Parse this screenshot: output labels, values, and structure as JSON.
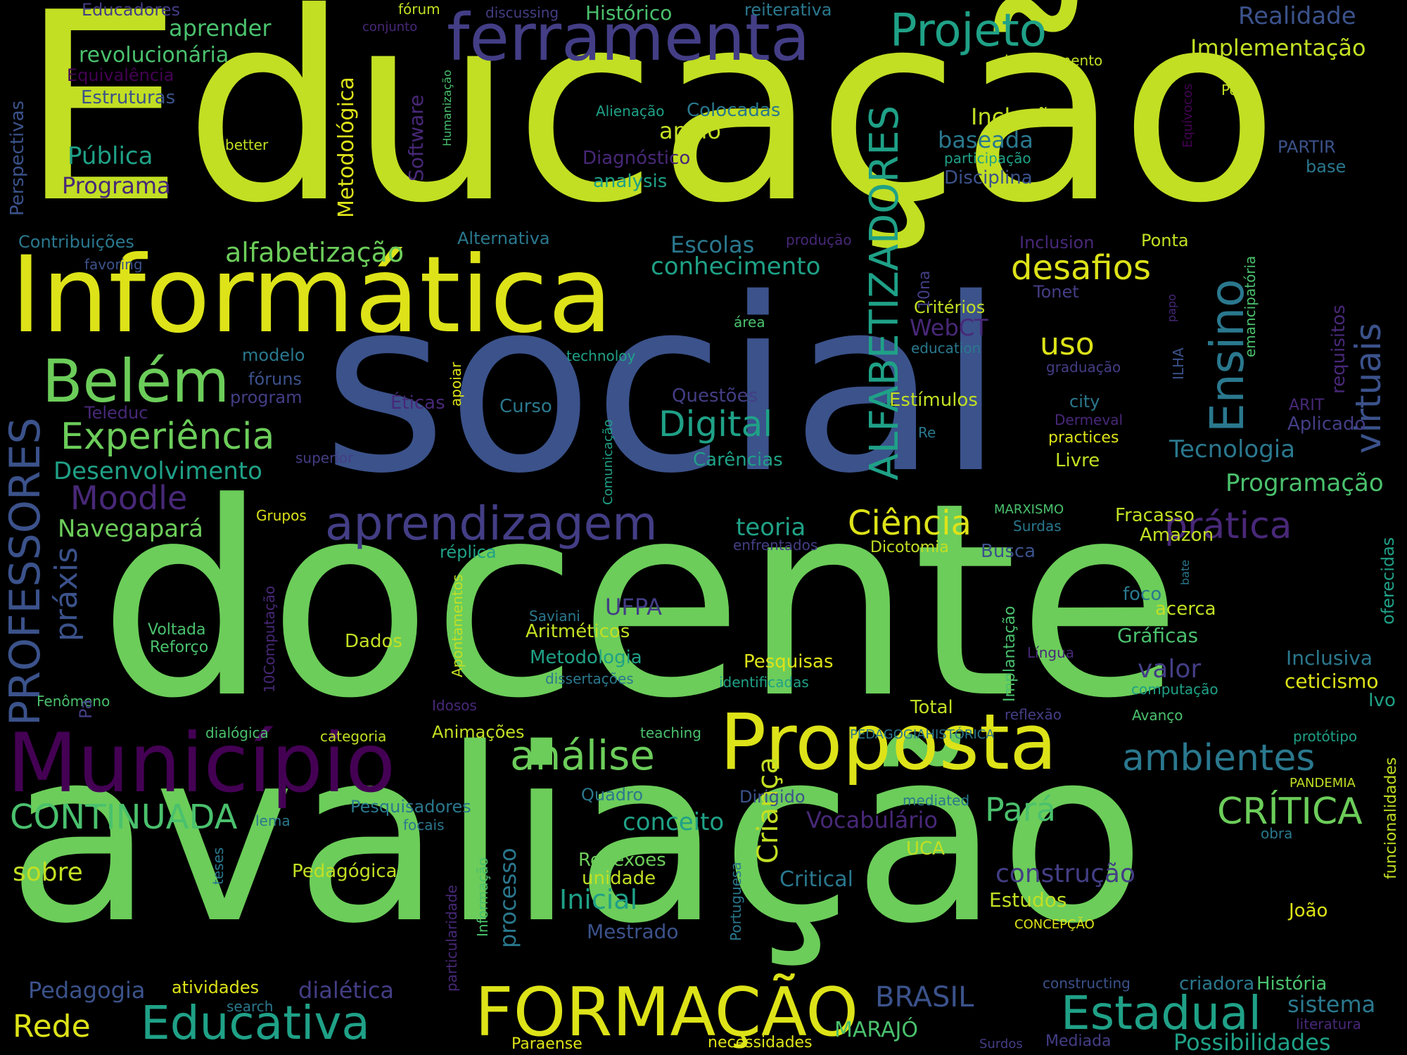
{
  "palette": {
    "background": "#000000",
    "lime": "#c2df23",
    "yellow": "#dde318",
    "green": "#6ccd5a",
    "green2": "#4ac16d",
    "teal": "#2a788e",
    "teal2": "#1fa187",
    "blue": "#3b528b",
    "indigo": "#433e85",
    "purple": "#440154",
    "violet": "#482878"
  },
  "words": {
    "educacao": "Educação",
    "social": "social",
    "docente": "docente",
    "avaliacao": "avaliação",
    "informatica": "Informática",
    "ferramenta": "ferramenta",
    "projeto": "Projeto",
    "municipio": "Município",
    "proposta": "Proposta",
    "formacao": "FORMAÇÃO",
    "educativa": "Educativa",
    "alfabetizadores": "ALFABETIZADORES",
    "ensino": "Ensino",
    "virtuais": "virtuais",
    "professores": "PROFESSORES",
    "aprendizagem": "aprendizagem",
    "belem": "Belém",
    "experiencia": "Experiência",
    "analise": "análise",
    "estadual": "Estadual",
    "ambientes": "ambientes",
    "critica": "CRÍTICA",
    "continuada": "CONTINUADA",
    "desafios": "desafios",
    "digital": "Digital",
    "alfabetizacao": "alfabetização",
    "conhecimento": "conhecimento",
    "moodle": "Moodle",
    "ciencia": "Ciência",
    "pratica": "prática",
    "praxis": "práxis",
    "rede": "Rede",
    "crianca": "Criança",
    "uso": "uso",
    "inclusao": "Inclusão",
    "implementacao": "Implementação",
    "realidade": "Realidade",
    "historico": "Histórico",
    "aprender": "aprender",
    "revolucionaria": "revolucionária",
    "equivalencia": "Equivalência",
    "estruturas": "Estruturas",
    "educadores": "Educadores",
    "forum": "fórum",
    "conjunto": "conjunto",
    "discussing": "discussing",
    "reiterativa": "reiterativa",
    "levantamento": "levantamento",
    "metodologica": "Metodológica",
    "software": "Software",
    "humanizacao": "Humanização",
    "publica": "Pública",
    "programa": "Programa",
    "better": "better",
    "alienacao": "Alienação",
    "colocadas": "Colocadas",
    "apoio": "apoio",
    "baseada": "baseada",
    "diagnostico": "Diagnóstico",
    "analysis": "analysis",
    "participacao": "participação",
    "disciplina": "Disciplina",
    "partir": "PARTIR",
    "base": "base",
    "pos": "Pós",
    "equivocos": "Equívocos",
    "perspectivas": "Perspectivas",
    "contribuicoes": "Contribuições",
    "favoring": "favoring",
    "alternativa": "Alternativa",
    "escolas": "Escolas",
    "producao": "produção",
    "inclusion": "Inclusion",
    "ponta": "Ponta",
    "tonet": "Tonet",
    "criterios": "Critérios",
    "webct": "WebCT",
    "education": "education",
    "area": "área",
    "technoloy": "technoloy",
    "modelo": "modelo",
    "foruns": "fóruns",
    "program": "program",
    "eticas": "Éticas",
    "questoes": "Questões",
    "curso": "Curso",
    "estimulos": "Estímulos",
    "city": "city",
    "graduacao": "graduação",
    "teleduc": "Teleduc",
    "superior": "superior",
    "carencias": "Carências",
    "re": "Re",
    "dermeval": "Dermeval",
    "practices": "practices",
    "livre": "Livre",
    "arit": "ARIT",
    "aplicado": "Aplicado",
    "tecnologia": "Tecnologia",
    "desenvolvimento": "Desenvolvimento",
    "programacao": "Programação",
    "requisitos": "requisitos",
    "emancipatoria": "emancipatória",
    "papo": "papo",
    "ilha": "ILHA",
    "apoiar": "apoiar",
    "navegapara": "Navegapará",
    "grupos": "Grupos",
    "replica": "réplica",
    "teoria": "teoria",
    "marxismo": "MARXISMO",
    "surdas": "Surdas",
    "fracasso": "Fracasso",
    "amazon": "Amazon",
    "enfrentados": "enfrentados",
    "dicotomia": "Dicotomia",
    "busca": "Busca",
    "comunicacao": "Comunicação",
    "implantacao": "Implantação",
    "bate": "bate",
    "oferecidas": "oferecidas",
    "foco": "foco",
    "acerca": "acerca",
    "saviani": "Saviani",
    "ufpa": "UFPA",
    "aritmeticos": "Aritméticos",
    "metodologia": "Metodologia",
    "dissertacoes": "dissertações",
    "voltada": "Voltada",
    "reforco": "Reforço",
    "dados": "Dados",
    "computacao10": "10Computação",
    "apontamentos": "Apontamentos",
    "graficas": "Gráficas",
    "lingua": "Língua",
    "inclusiva": "Inclusiva",
    "ceticismo": "ceticismo",
    "valor": "valor",
    "pesquisas": "Pesquisas",
    "identificadas": "identificadas",
    "computacao": "computação",
    "fenomeno": "Fenômeno",
    "pa": "Pa",
    "idosos": "Idosos",
    "total": "Total",
    "reflexao": "reflexão",
    "avanco": "Avanço",
    "ivo": "Ivo",
    "dialogica": "dialógica",
    "categoria": "categoria",
    "animacoes": "Animações",
    "teaching": "teaching",
    "pedagogiahistorica": "PEDAGOGIAHISTÓRICA",
    "prototipo": "protótipo",
    "funcionalidades": "funcionalidades",
    "quadro": "Quadro",
    "dirigido": "Dirigido",
    "mediated": "mediated",
    "pandemia": "PANDEMIA",
    "lema": "lema",
    "pesquisadores": "Pesquisadores",
    "focais": "focais",
    "conceito": "conceito",
    "vocabulario": "Vocabulário",
    "para": "Pará",
    "obra": "obra",
    "sobre": "sobre",
    "teses": "teses",
    "pedagogica": "Pedagógica",
    "processo": "processo",
    "informacao": "Informação",
    "reflexoes": "Reflexões",
    "unidade": "unidade",
    "portuguesa": "Portuguesa",
    "critical": "Critical",
    "uca": "UCA",
    "construcao": "construção",
    "estudos": "Estudos",
    "inicial": "Inicial",
    "particularidade": "particularidade",
    "mestrado": "Mestrado",
    "concepcao": "CONCEPÇÃO",
    "joao": "João",
    "pedagogia": "Pedagogia",
    "atividades": "atividades",
    "dialetica": "dialética",
    "brasil": "BRASIL",
    "constructing": "constructing",
    "criadora": "criadora",
    "historia": "História",
    "sistema": "sistema",
    "literatura": "literatura",
    "search": "search",
    "marajo": "MARAJÓ",
    "paraense": "Paraense",
    "necessidades": "necessidades",
    "surdos": "Surdos",
    "mediada": "Mediada",
    "possibilidades": "Possibilidades",
    "ona10": "10na"
  }
}
